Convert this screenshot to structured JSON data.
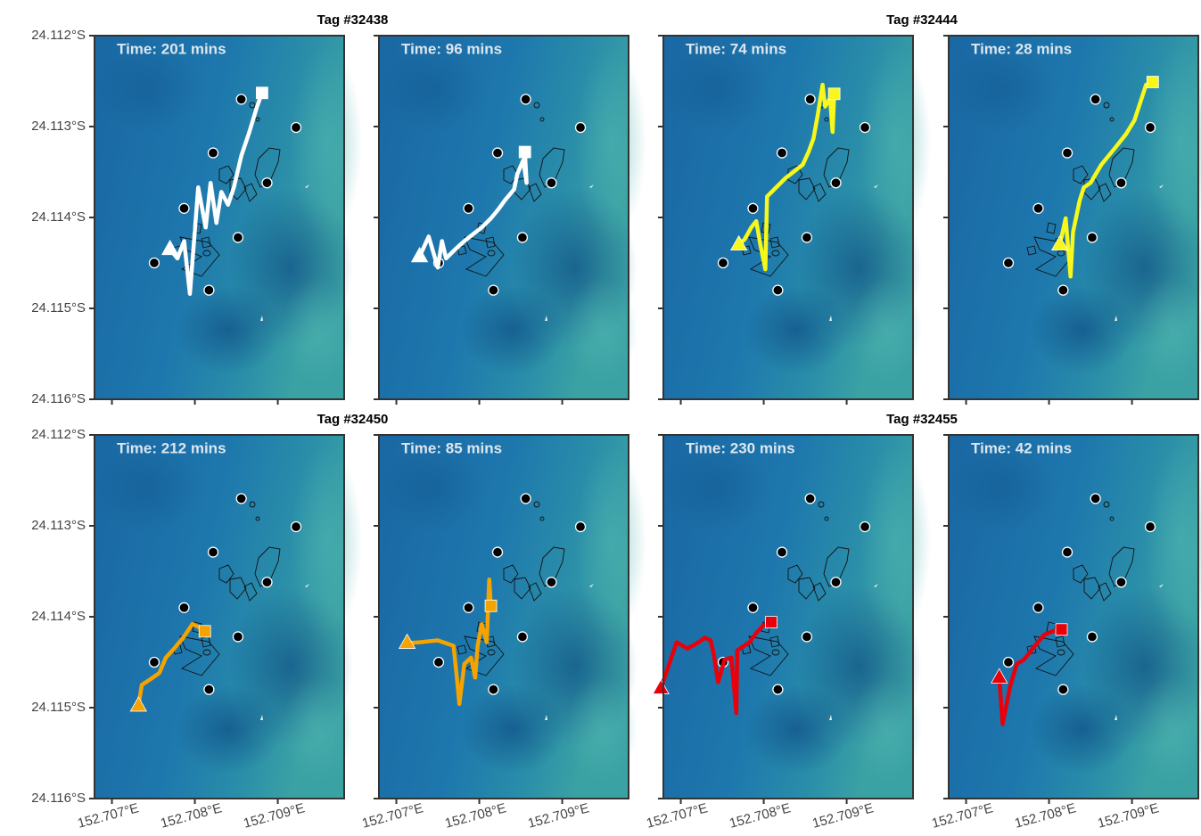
{
  "map_axes": {
    "xlim": [
      152.70679,
      152.7098
    ],
    "ylim": [
      -24.116,
      -24.112
    ],
    "xticks": [
      {
        "value": 152.707,
        "label": "152.707°E"
      },
      {
        "value": 152.708,
        "label": "152.708°E"
      },
      {
        "value": 152.709,
        "label": "152.709°E"
      }
    ],
    "yticks": [
      {
        "value": -24.112,
        "label": "24.112°S"
      },
      {
        "value": -24.113,
        "label": "24.113°S"
      },
      {
        "value": -24.114,
        "label": "24.114°S"
      },
      {
        "value": -24.115,
        "label": "24.115°S"
      },
      {
        "value": -24.116,
        "label": "24.116°S"
      }
    ]
  },
  "receivers": {
    "lon": [
      152.70856,
      152.70922,
      152.70822,
      152.70887,
      152.70787,
      152.70852,
      152.70751,
      152.70817
    ],
    "lat": [
      -24.1127,
      -24.11301,
      -24.11329,
      -24.11362,
      -24.1139,
      -24.11422,
      -24.1145,
      -24.1148
    ]
  },
  "chart_data": [
    {
      "type": "track",
      "title": "Tag #32438",
      "annotation": "Time: 201 mins",
      "color": "#ffffff",
      "x": [
        152.7077,
        152.70779,
        152.70787,
        152.70794,
        152.70804,
        152.70813,
        152.70819,
        152.70826,
        152.70832,
        152.7084,
        152.70847,
        152.70856,
        152.70865,
        152.70875,
        152.70881
      ],
      "y": [
        -24.11435,
        -24.11445,
        -24.11426,
        -24.11484,
        -24.11367,
        -24.11411,
        -24.11362,
        -24.11406,
        -24.11372,
        -24.11386,
        -24.11367,
        -24.11332,
        -24.11308,
        -24.11278,
        -24.11263
      ]
    },
    {
      "type": "track",
      "annotation": "Time: 96 mins",
      "color": "#ffffff",
      "x": [
        152.70728,
        152.70739,
        152.7075,
        152.70755,
        152.7076,
        152.70771,
        152.70782,
        152.70793,
        152.70803,
        152.70814,
        152.70823,
        152.70831,
        152.70842,
        152.70846,
        152.70853,
        152.70857,
        152.70855
      ],
      "y": [
        -24.11443,
        -24.11421,
        -24.11455,
        -24.11426,
        -24.11445,
        -24.11435,
        -24.11426,
        -24.11418,
        -24.11411,
        -24.11401,
        -24.11391,
        -24.11381,
        -24.11369,
        -24.11352,
        -24.11337,
        -24.11362,
        -24.11328
      ]
    },
    {
      "type": "track",
      "title": "Tag #32444",
      "annotation": "Time: 74 mins",
      "color": "#f7f71c",
      "x": [
        152.7077,
        152.70777,
        152.70785,
        152.70791,
        152.70796,
        152.70802,
        152.70804,
        152.70826,
        152.70847,
        152.70854,
        152.7086,
        152.70865,
        152.70871,
        152.70874,
        152.7088,
        152.70883,
        152.70885
      ],
      "y": [
        -24.1143,
        -24.11424,
        -24.11411,
        -24.11404,
        -24.1143,
        -24.11457,
        -24.11377,
        -24.11357,
        -24.11342,
        -24.11328,
        -24.11313,
        -24.11288,
        -24.11254,
        -24.11278,
        -24.11269,
        -24.11306,
        -24.11264
      ]
    },
    {
      "type": "track",
      "annotation": "Time: 28 mins",
      "color": "#f7f71c",
      "x": [
        152.70813,
        152.7082,
        152.70826,
        152.70829,
        152.70837,
        152.70842,
        152.7085,
        152.70863,
        152.7088,
        152.70893,
        152.70903,
        152.70917,
        152.70925
      ],
      "y": [
        -24.1143,
        -24.11401,
        -24.11465,
        -24.11416,
        -24.11381,
        -24.11367,
        -24.11362,
        -24.11342,
        -24.11323,
        -24.11308,
        -24.11293,
        -24.11254,
        -24.11251
      ]
    },
    {
      "type": "track",
      "title": "Tag #32450",
      "annotation": "Time: 212 mins",
      "color": "#f5a300",
      "x": [
        152.70732,
        152.70736,
        152.70746,
        152.70757,
        152.70765,
        152.70775,
        152.70786,
        152.70797,
        152.70804,
        152.70812
      ],
      "y": [
        -24.11498,
        -24.11475,
        -24.11469,
        -24.11462,
        -24.11445,
        -24.11435,
        -24.11423,
        -24.11408,
        -24.11411,
        -24.11416
      ]
    },
    {
      "type": "track",
      "annotation": "Time: 85 mins",
      "color": "#f5a300",
      "x": [
        152.70713,
        152.70728,
        152.7075,
        152.70769,
        152.70773,
        152.70776,
        152.70782,
        152.7079,
        152.70795,
        152.70798,
        152.70803,
        152.70809,
        152.70812,
        152.70814
      ],
      "y": [
        -24.11429,
        -24.11428,
        -24.11426,
        -24.11432,
        -24.11467,
        -24.11496,
        -24.11452,
        -24.11445,
        -24.11467,
        -24.11432,
        -24.11408,
        -24.11428,
        -24.11359,
        -24.11388
      ]
    },
    {
      "type": "track",
      "title": "Tag #32455",
      "annotation": "Time: 230 mins",
      "color": "#e8000b",
      "x": [
        152.70676,
        152.70686,
        152.70695,
        152.70708,
        152.7072,
        152.70729,
        152.70736,
        152.7074,
        152.70745,
        152.70753,
        152.70761,
        152.70767,
        152.70768,
        152.70783,
        152.70791,
        152.70799,
        152.70809
      ],
      "y": [
        -24.11479,
        -24.11452,
        -24.11428,
        -24.11435,
        -24.11429,
        -24.11423,
        -24.11426,
        -24.11442,
        -24.11472,
        -24.11447,
        -24.11445,
        -24.11506,
        -24.11437,
        -24.11428,
        -24.11418,
        -24.1141,
        -24.11406
      ]
    },
    {
      "type": "track",
      "annotation": "Time: 42 mins",
      "color": "#e8000b",
      "x": [
        152.7074,
        152.70744,
        152.70753,
        152.70761,
        152.7077,
        152.70783,
        152.70794,
        152.70804,
        152.70815
      ],
      "y": [
        -24.11467,
        -24.11518,
        -24.11477,
        -24.11452,
        -24.11447,
        -24.11432,
        -24.1142,
        -24.11416,
        -24.11414
      ]
    }
  ]
}
